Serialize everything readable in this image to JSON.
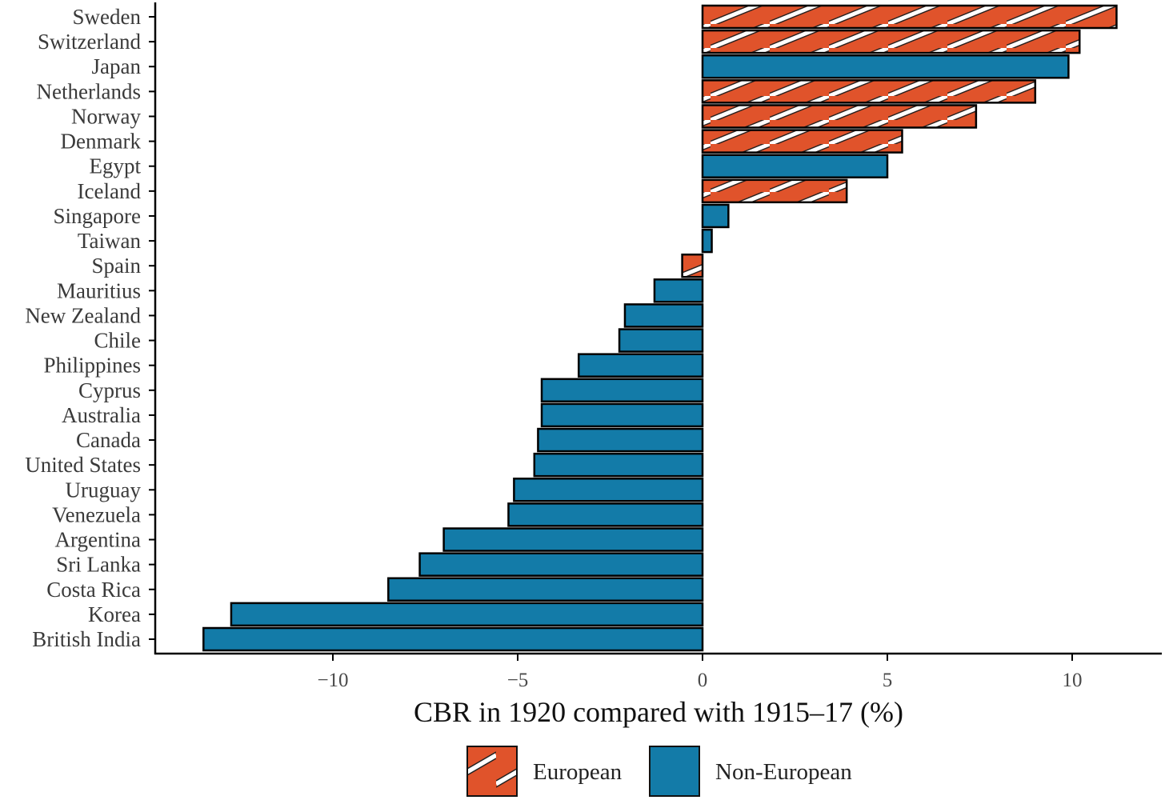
{
  "chart_data": {
    "type": "bar",
    "orientation": "horizontal",
    "xlabel": "CBR in 1920 compared with 1915–17 (%)",
    "ylabel": "",
    "xlim": [
      -14.7,
      12.4
    ],
    "x_ticks": [
      -10,
      -5,
      0,
      5,
      10
    ],
    "x_tick_labels": [
      "−10",
      "−5",
      "0",
      "5",
      "10"
    ],
    "grid": false,
    "legend_position": "bottom",
    "legend": [
      {
        "label": "European",
        "color": "#E0532B",
        "pattern": "diagonal-stripes"
      },
      {
        "label": "Non-European",
        "color": "#137BA8",
        "pattern": "solid"
      }
    ],
    "categories": [
      "Sweden",
      "Switzerland",
      "Japan",
      "Netherlands",
      "Norway",
      "Denmark",
      "Egypt",
      "Iceland",
      "Singapore",
      "Taiwan",
      "Spain",
      "Mauritius",
      "New Zealand",
      "Chile",
      "Philippines",
      "Cyprus",
      "Australia",
      "Canada",
      "United States",
      "Uruguay",
      "Venezuela",
      "Argentina",
      "Sri Lanka",
      "Costa Rica",
      "Korea",
      "British India"
    ],
    "values": [
      11.2,
      10.2,
      9.9,
      9.0,
      7.4,
      5.4,
      5.0,
      3.9,
      0.7,
      0.25,
      -0.55,
      -1.3,
      -2.1,
      -2.25,
      -3.35,
      -4.35,
      -4.35,
      -4.45,
      -4.55,
      -5.1,
      -5.25,
      -7.0,
      -7.65,
      -8.5,
      -12.75,
      -13.5
    ],
    "groups": [
      "European",
      "European",
      "Non-European",
      "European",
      "European",
      "European",
      "Non-European",
      "European",
      "Non-European",
      "Non-European",
      "European",
      "Non-European",
      "Non-European",
      "Non-European",
      "Non-European",
      "Non-European",
      "Non-European",
      "Non-European",
      "Non-European",
      "Non-European",
      "Non-European",
      "Non-European",
      "Non-European",
      "Non-European",
      "Non-European",
      "Non-European"
    ]
  }
}
